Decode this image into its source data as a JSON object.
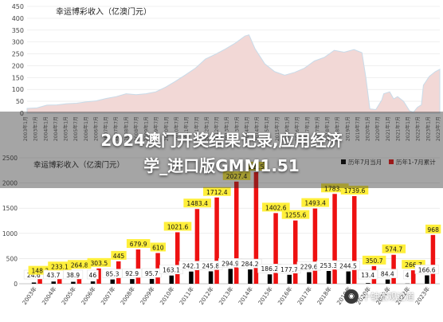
{
  "headline": {
    "line1": "2024澳门开奖结果记录,应用经济",
    "line2": "学_进口版GMM1.51"
  },
  "watermark": {
    "text": "十轴宏观论道"
  },
  "colors": {
    "area": "#f2d8d6",
    "area_line": "#c8dbe9",
    "bar_black": "#000000",
    "bar_red": "#ee1111",
    "label_yellow": "#ffef3a"
  },
  "chart_data": [
    {
      "type": "area",
      "title": "幸运博彩收入（亿澳门元）",
      "ylim": [
        0,
        450
      ],
      "yticks": [
        "450",
        "400",
        "350",
        "300",
        "250",
        "200",
        "150",
        "100",
        "50",
        "0"
      ],
      "xlabels": [
        "2003年1月",
        "2003年7月",
        "2004年1月",
        "2004年7月",
        "2005年1月",
        "2005年7月",
        "2006年1月",
        "2006年7月",
        "2007年1月",
        "2007年7月",
        "2008年1月",
        "2008年7月",
        "2009年1月",
        "2009年7月",
        "2010年1月",
        "2010年7月",
        "2011年1月",
        "2011年7月",
        "2012年1月",
        "2012年7月",
        "2013年1月",
        "2013年7月",
        "2014年1月",
        "2014年7月",
        "2015年1月",
        "2015年7月",
        "2016年1月",
        "2016年7月",
        "2017年1月",
        "2017年7月",
        "2018年1月",
        "2018年7月",
        "2019年1月",
        "2019年7月",
        "2020年1月",
        "2020年7月",
        "2021年1月",
        "2021年7月",
        "2022年1月",
        "2022年7月",
        "2023年1月",
        "2023年7月"
      ],
      "x": [
        2003.0,
        2003.5,
        2004.0,
        2004.5,
        2005.0,
        2005.5,
        2006.0,
        2006.5,
        2007.0,
        2007.5,
        2008.0,
        2008.5,
        2009.0,
        2009.5,
        2010.0,
        2010.5,
        2011.0,
        2011.5,
        2012.0,
        2012.5,
        2013.0,
        2013.5,
        2014.0,
        2014.2,
        2014.5,
        2015.0,
        2015.5,
        2016.0,
        2016.5,
        2017.0,
        2017.5,
        2018.0,
        2018.5,
        2019.0,
        2019.5,
        2019.9,
        2020.1,
        2020.3,
        2020.6,
        2020.9,
        2021.0,
        2021.3,
        2021.5,
        2021.7,
        2022.0,
        2022.3,
        2022.5,
        2022.7,
        2022.9,
        2023.0,
        2023.3,
        2023.6,
        2023.83
      ],
      "y": [
        20,
        22,
        34,
        35,
        40,
        42,
        48,
        52,
        62,
        70,
        82,
        78,
        82,
        90,
        110,
        135,
        162,
        190,
        228,
        248,
        270,
        295,
        325,
        330,
        272,
        208,
        175,
        160,
        172,
        190,
        220,
        235,
        265,
        257,
        268,
        255,
        150,
        18,
        15,
        55,
        82,
        90,
        60,
        70,
        50,
        10,
        4,
        25,
        35,
        118,
        155,
        175,
        185
      ]
    },
    {
      "type": "bar",
      "title": "幸运博彩收入（亿澳门元）",
      "legend": [
        "历年7月当月",
        "历年1-7月累计"
      ],
      "legend_position": "top-right",
      "ylim": [
        0,
        2500
      ],
      "yticks": [
        "2500",
        "2000",
        "1500",
        "1000",
        "500",
        "0"
      ],
      "categories": [
        "2003年",
        "2004年",
        "2005年",
        "2006年",
        "2007年",
        "2008年",
        "2009年",
        "2010年",
        "2011年",
        "2012年",
        "2013年",
        "2014年",
        "2015年",
        "2016年",
        "2017年",
        "2018年",
        "2019年",
        "2020年",
        "2021年",
        "2022年",
        "2023年"
      ],
      "series": [
        {
          "name": "历年7月当月",
          "values": [
            24.6,
            43.7,
            38.9,
            46.0,
            85.3,
            92.9,
            95.7,
            163.1,
            242.1,
            245.8,
            294.9,
            284.2,
            186.2,
            177.7,
            229.6,
            253.3,
            244.5,
            13.4,
            84.4,
            4.0,
            166.6
          ]
        },
        {
          "name": "历年1-7月累计",
          "values": [
            148.3,
            233.1,
            264.8,
            303.5,
            445.0,
            679.9,
            610.0,
            1021.6,
            1483.4,
            1712.4,
            2027.4,
            2215.0,
            1402.6,
            1255.6,
            1493.4,
            1783.6,
            1739.6,
            350.7,
            574.7,
            266.7,
            968.0
          ]
        }
      ]
    }
  ]
}
